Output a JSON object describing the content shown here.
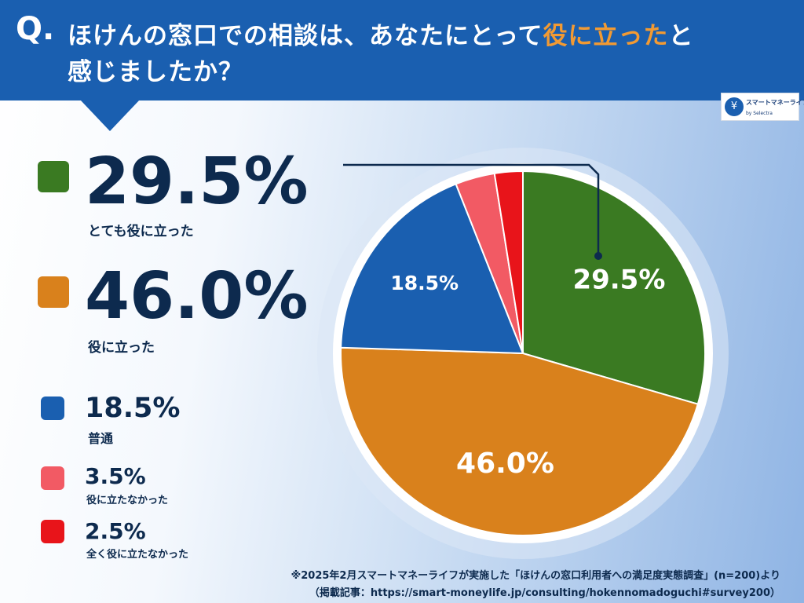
{
  "header": {
    "q_mark": "Q.",
    "line1_before": "ほけんの窓口での相談は、あなたにとって",
    "line1_highlight": "役に立った",
    "line1_after": "と",
    "line2": "感じましたか？"
  },
  "logo": {
    "icon": "piggy-bank-icon",
    "name": "スマートマネーライフ",
    "by": "by",
    "brand": "Selectra"
  },
  "legend": [
    {
      "value": "29.5%",
      "label": "とても役に立った",
      "color": "#3a7a22"
    },
    {
      "value": "46.0%",
      "label": "役に立った",
      "color": "#d9811c"
    },
    {
      "value": "18.5%",
      "label": "普通",
      "color": "#1a5fb0"
    },
    {
      "value": "3.5%",
      "label": "役に立たなかった",
      "color": "#f25a64"
    },
    {
      "value": "2.5%",
      "label": "全く役に立たなかった",
      "color": "#e8141a"
    }
  ],
  "chart_data": {
    "type": "pie",
    "categories": [
      "とても役に立った",
      "役に立った",
      "普通",
      "役に立たなかった",
      "全く役に立たなかった"
    ],
    "values": [
      29.5,
      46.0,
      18.5,
      3.5,
      2.5
    ],
    "slice_labels": [
      "29.5%",
      "46.0%",
      "18.5%",
      "",
      ""
    ],
    "colors": [
      "#3a7a22",
      "#d9811c",
      "#1a5fb0",
      "#f25a64",
      "#e8141a"
    ],
    "start_angle": "12 o'clock",
    "direction": "clockwise"
  },
  "footnote": {
    "line1": "※2025年2月スマートマネーライフが実施した「ほけんの窓口利用者への満足度実態調査」(n=200)より",
    "line2": "（掲載記事：https://smart-moneylife.jp/consulting/hokennomadoguchi#survey200）"
  }
}
